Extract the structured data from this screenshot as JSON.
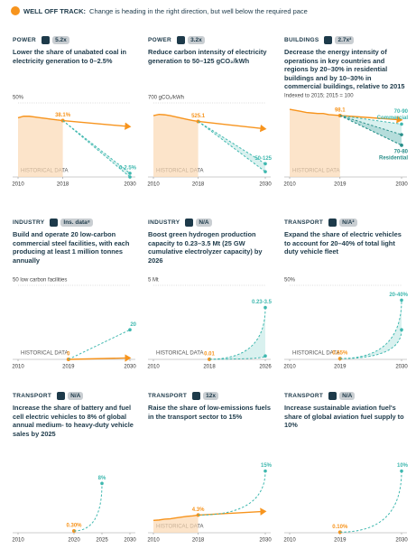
{
  "header": {
    "label": "WELL OFF TRACK:",
    "text": "Change is heading in the right direction, but well below the required pace"
  },
  "chart_data": [
    {
      "type": "line",
      "sector": "POWER",
      "badge": "5.2x",
      "title": "Lower the share of unabated coal in electricity generation to 0–2.5%",
      "xlim": [
        2010,
        2030
      ],
      "xticks": [
        2010,
        2018,
        2030
      ],
      "ylim": [
        0,
        50
      ],
      "yticks": [
        {
          "value": 50,
          "label": "50%"
        }
      ],
      "historical": "HISTORICAL DATA",
      "series": [
        {
          "color": "#f7941d",
          "area": true,
          "x": [
            2010,
            2011,
            2012,
            2013,
            2014,
            2015,
            2016,
            2017,
            2018
          ],
          "values": [
            40,
            41,
            41,
            40.5,
            40,
            39.5,
            39,
            38.5,
            38.1
          ],
          "value_labels": [
            null,
            null,
            null,
            null,
            null,
            null,
            null,
            null,
            "38.1%"
          ]
        },
        {
          "color": "#f7941d",
          "arrow": true,
          "x": [
            2018,
            2030
          ],
          "values": [
            38.1,
            34
          ]
        },
        {
          "color": "#3fb8af",
          "dash": true,
          "x": [
            2018,
            2030
          ],
          "values": [
            38.1,
            2.5
          ],
          "low": [
            null,
            0
          ],
          "value_labels": [
            null,
            "0-2.5%"
          ]
        }
      ]
    },
    {
      "type": "line",
      "sector": "POWER",
      "badge": "3.2x",
      "title": "Reduce carbon intensity of electricity generation to 50–125 gCO₂/kWh",
      "xlim": [
        2010,
        2030
      ],
      "xticks": [
        2010,
        2018,
        2030
      ],
      "ylim": [
        0,
        700
      ],
      "yticks": [
        {
          "value": 700,
          "label": "700 gCO₂/kWh"
        }
      ],
      "historical": "HISTORICAL DATA",
      "series": [
        {
          "color": "#f7941d",
          "area": true,
          "x": [
            2010,
            2011,
            2012,
            2013,
            2014,
            2015,
            2016,
            2017,
            2018
          ],
          "values": [
            580,
            592,
            588,
            580,
            568,
            556,
            545,
            534,
            525.1
          ],
          "value_labels": [
            null,
            null,
            null,
            null,
            null,
            null,
            null,
            null,
            "525.1"
          ]
        },
        {
          "color": "#f7941d",
          "arrow": true,
          "x": [
            2018,
            2030
          ],
          "values": [
            525.1,
            455
          ]
        },
        {
          "color": "#3fb8af",
          "dash": true,
          "x": [
            2018,
            2030
          ],
          "values": [
            525.1,
            125
          ],
          "low": [
            null,
            50
          ],
          "value_labels": [
            null,
            "50-125"
          ]
        }
      ]
    },
    {
      "type": "line",
      "sector": "BUILDINGS",
      "badge": "2.7x²",
      "title": "Decrease the energy intensity of operations in key countries and regions by 20–30% in residential buildings and by 10–30% in commercial buildings, relative to 2015",
      "unit": "Indexed to 2015; 2015 = 100",
      "xlim": [
        2010,
        2030
      ],
      "xticks": [
        2010,
        2019,
        2030
      ],
      "ylim": [
        40,
        110
      ],
      "yticks": [],
      "historical": "HISTORICAL DATA",
      "series": [
        {
          "color": "#f7941d",
          "area": true,
          "x": [
            2010,
            2011,
            2012,
            2013,
            2014,
            2015,
            2016,
            2017,
            2018,
            2019
          ],
          "values": [
            104,
            103,
            102,
            101,
            100.5,
            100,
            100,
            99,
            98.5,
            98.1
          ],
          "value_labels": [
            null,
            null,
            null,
            null,
            null,
            null,
            null,
            null,
            null,
            "98.1"
          ]
        },
        {
          "color": "#f7941d",
          "arrow": true,
          "x": [
            2019,
            2030
          ],
          "values": [
            98.1,
            94
          ]
        },
        {
          "name": "Commercial",
          "color": "#3fb8af",
          "dash": true,
          "x": [
            2019,
            2030
          ],
          "values": [
            98.1,
            90
          ],
          "low": [
            null,
            70
          ],
          "value_labels": [
            null,
            "70-90"
          ]
        },
        {
          "name": "Residential",
          "color": "#2a8f8a",
          "dash": true,
          "x": [
            2019,
            2030
          ],
          "values": [
            98.1,
            80
          ],
          "low": [
            null,
            70
          ],
          "value_labels": [
            null,
            "70-80"
          ]
        }
      ]
    },
    {
      "type": "line",
      "sector": "INDUSTRY",
      "badge": "Ins. data⁸",
      "title": "Build and operate 20 low-carbon commercial steel facilities, with each producing at least 1 million tonnes annually",
      "xlim": [
        2010,
        2030
      ],
      "xticks": [
        2010,
        2019,
        2030
      ],
      "ylim": [
        0,
        50
      ],
      "yticks": [
        {
          "value": 50,
          "label": "50 low carbon facilities"
        }
      ],
      "historical": "HISTORICAL DATA",
      "series": [
        {
          "color": "#f7941d",
          "x": [
            2019
          ],
          "values": [
            0
          ],
          "value_labels": [
            "0"
          ]
        },
        {
          "color": "#f7941d",
          "arrow": true,
          "x": [
            2019,
            2030
          ],
          "values": [
            0,
            1
          ]
        },
        {
          "color": "#3fb8af",
          "dash": true,
          "x": [
            2019,
            2030
          ],
          "values": [
            0,
            20
          ],
          "value_labels": [
            null,
            "20"
          ]
        }
      ]
    },
    {
      "type": "line",
      "sector": "INDUSTRY",
      "badge": "N/A",
      "title": "Boost green hydrogen production capacity to 0.23–3.5 Mt (25 GW cumulative electrolyzer capacity) by 2026",
      "xlim": [
        2010,
        2026
      ],
      "xticks": [
        2010,
        2018,
        2026
      ],
      "ylim": [
        0,
        5
      ],
      "yticks": [
        {
          "value": 5,
          "label": "5 Mt"
        }
      ],
      "historical": "HISTORICAL DATA",
      "series": [
        {
          "color": "#f7941d",
          "x": [
            2018
          ],
          "values": [
            0.01
          ],
          "value_labels": [
            "0.01"
          ]
        },
        {
          "color": "#3fb8af",
          "dash": true,
          "curve": true,
          "x": [
            2018,
            2026
          ],
          "values": [
            0.01,
            3.5
          ],
          "low": [
            null,
            0.23
          ],
          "value_labels": [
            null,
            "0.23-3.5"
          ]
        }
      ]
    },
    {
      "type": "line",
      "sector": "TRANSPORT",
      "badge": "N/A²",
      "title": "Expand the share of electric vehicles to account for 20–40% of total light duty vehicle fleet",
      "xlim": [
        2010,
        2030
      ],
      "xticks": [
        2010,
        2019,
        2030
      ],
      "ylim": [
        0,
        50
      ],
      "yticks": [
        {
          "value": 50,
          "label": "50%"
        }
      ],
      "historical": "HISTORICAL DATA",
      "series": [
        {
          "color": "#f7941d",
          "x": [
            2019
          ],
          "values": [
            0.55
          ],
          "value_labels": [
            "0.55%"
          ]
        },
        {
          "color": "#3fb8af",
          "dash": true,
          "curve": true,
          "x": [
            2019,
            2030
          ],
          "values": [
            0.55,
            40
          ],
          "low": [
            null,
            20
          ],
          "value_labels": [
            null,
            "20-40%"
          ]
        }
      ]
    },
    {
      "type": "line",
      "sector": "TRANSPORT",
      "badge": "N/A",
      "title": "Increase the share of battery and fuel cell electric vehicles to 8% of global annual medium- to heavy-duty vehicle sales by 2025",
      "xlim": [
        2010,
        2030
      ],
      "xticks": [
        2010,
        2020,
        2025,
        2030
      ],
      "ylim": [
        0,
        12
      ],
      "yticks": [],
      "series": [
        {
          "color": "#f7941d",
          "x": [
            2020
          ],
          "values": [
            0.3
          ],
          "value_labels": [
            "0.30%"
          ]
        },
        {
          "color": "#3fb8af",
          "dash": true,
          "curve": true,
          "x": [
            2020,
            2025
          ],
          "values": [
            0.3,
            8
          ],
          "value_labels": [
            null,
            "8%"
          ]
        }
      ]
    },
    {
      "type": "line",
      "sector": "TRANSPORT",
      "badge": "12x",
      "title": "Raise the share of low-emissions fuels in the transport sector to 15%",
      "xlim": [
        2010,
        2030
      ],
      "xticks": [
        2010,
        2018,
        2030
      ],
      "ylim": [
        0,
        18
      ],
      "yticks": [],
      "historical": "HISTORICAL DATA",
      "series": [
        {
          "color": "#f7941d",
          "area": true,
          "x": [
            2010,
            2011,
            2012,
            2013,
            2014,
            2015,
            2016,
            2017,
            2018
          ],
          "values": [
            3.0,
            3.1,
            3.3,
            3.4,
            3.6,
            3.8,
            4.0,
            4.1,
            4.3
          ],
          "value_labels": [
            null,
            null,
            null,
            null,
            null,
            null,
            null,
            null,
            "4.3%"
          ]
        },
        {
          "color": "#f7941d",
          "arrow": true,
          "x": [
            2018,
            2030
          ],
          "values": [
            4.3,
            5.2
          ]
        },
        {
          "color": "#3fb8af",
          "dash": true,
          "curve": true,
          "x": [
            2018,
            2030
          ],
          "values": [
            4.3,
            15
          ],
          "value_labels": [
            null,
            "15%"
          ]
        }
      ]
    },
    {
      "type": "line",
      "sector": "TRANSPORT",
      "badge": "N/A",
      "title": "Increase sustainable aviation fuel's share of global aviation fuel supply to 10%",
      "xlim": [
        2010,
        2030
      ],
      "xticks": [
        2010,
        2019,
        2030
      ],
      "ylim": [
        0,
        12
      ],
      "yticks": [],
      "series": [
        {
          "color": "#f7941d",
          "x": [
            2019
          ],
          "values": [
            0.1
          ],
          "value_labels": [
            "0.10%"
          ]
        },
        {
          "color": "#3fb8af",
          "dash": true,
          "curve": true,
          "x": [
            2019,
            2030
          ],
          "values": [
            0.1,
            10
          ],
          "value_labels": [
            null,
            "10%"
          ]
        }
      ]
    }
  ]
}
